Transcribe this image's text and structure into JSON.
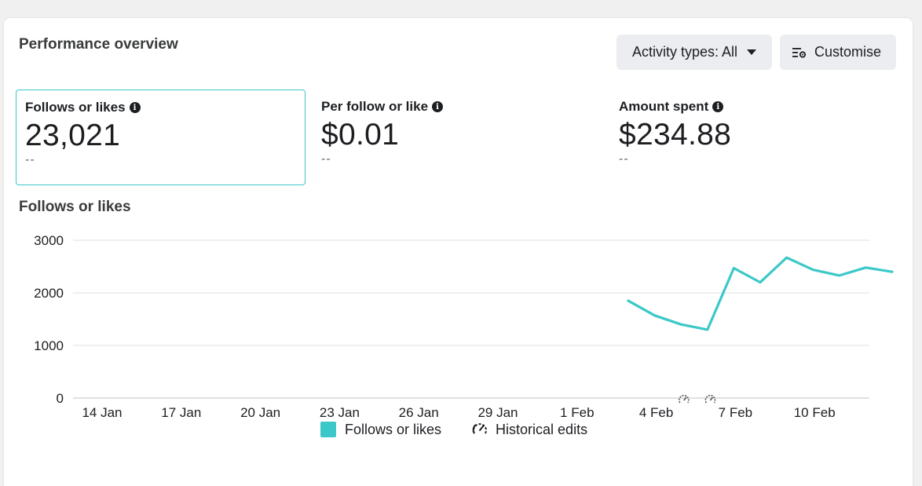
{
  "panel": {
    "title": "Performance overview",
    "activity_button": "Activity types: All",
    "customise_button": "Customise"
  },
  "metrics": [
    {
      "label": "Follows or likes",
      "value": "23,021",
      "change": "--"
    },
    {
      "label": "Per follow or like",
      "value": "$0.01",
      "change": "--"
    },
    {
      "label": "Amount spent",
      "value": "$234.88",
      "change": "--"
    }
  ],
  "chart_section_title": "Follows or likes",
  "legend": {
    "series": "Follows or likes",
    "historical": "Historical edits"
  },
  "colors": {
    "accent": "#3cc8c8",
    "grid": "#dddfe2",
    "text": "#1c1e21"
  },
  "chart_data": {
    "type": "line",
    "title": "",
    "xlabel": "",
    "ylabel": "",
    "ylim": [
      0,
      3000
    ],
    "yticks": [
      0,
      1000,
      2000,
      3000
    ],
    "ytick_labels": [
      "0",
      "1000",
      "2000",
      "3000"
    ],
    "xlim": [
      "2022-01-13",
      "2022-02-13"
    ],
    "xticks": [
      "14 Jan",
      "17 Jan",
      "20 Jan",
      "23 Jan",
      "26 Jan",
      "29 Jan",
      "1 Feb",
      "4 Feb",
      "7 Feb",
      "10 Feb"
    ],
    "x": [
      "3 Feb",
      "4 Feb",
      "5 Feb",
      "6 Feb",
      "7 Feb",
      "8 Feb",
      "9 Feb",
      "10 Feb",
      "11 Feb",
      "12 Feb",
      "13 Feb"
    ],
    "series": [
      {
        "name": "Follows or likes",
        "values": [
          1850,
          1570,
          1400,
          1300,
          2470,
          2200,
          2670,
          2440,
          2330,
          2480,
          2400
        ]
      }
    ],
    "historical_edits": [
      "6 Feb",
      "7 Feb"
    ],
    "grid": true,
    "legend_position": "bottom"
  }
}
